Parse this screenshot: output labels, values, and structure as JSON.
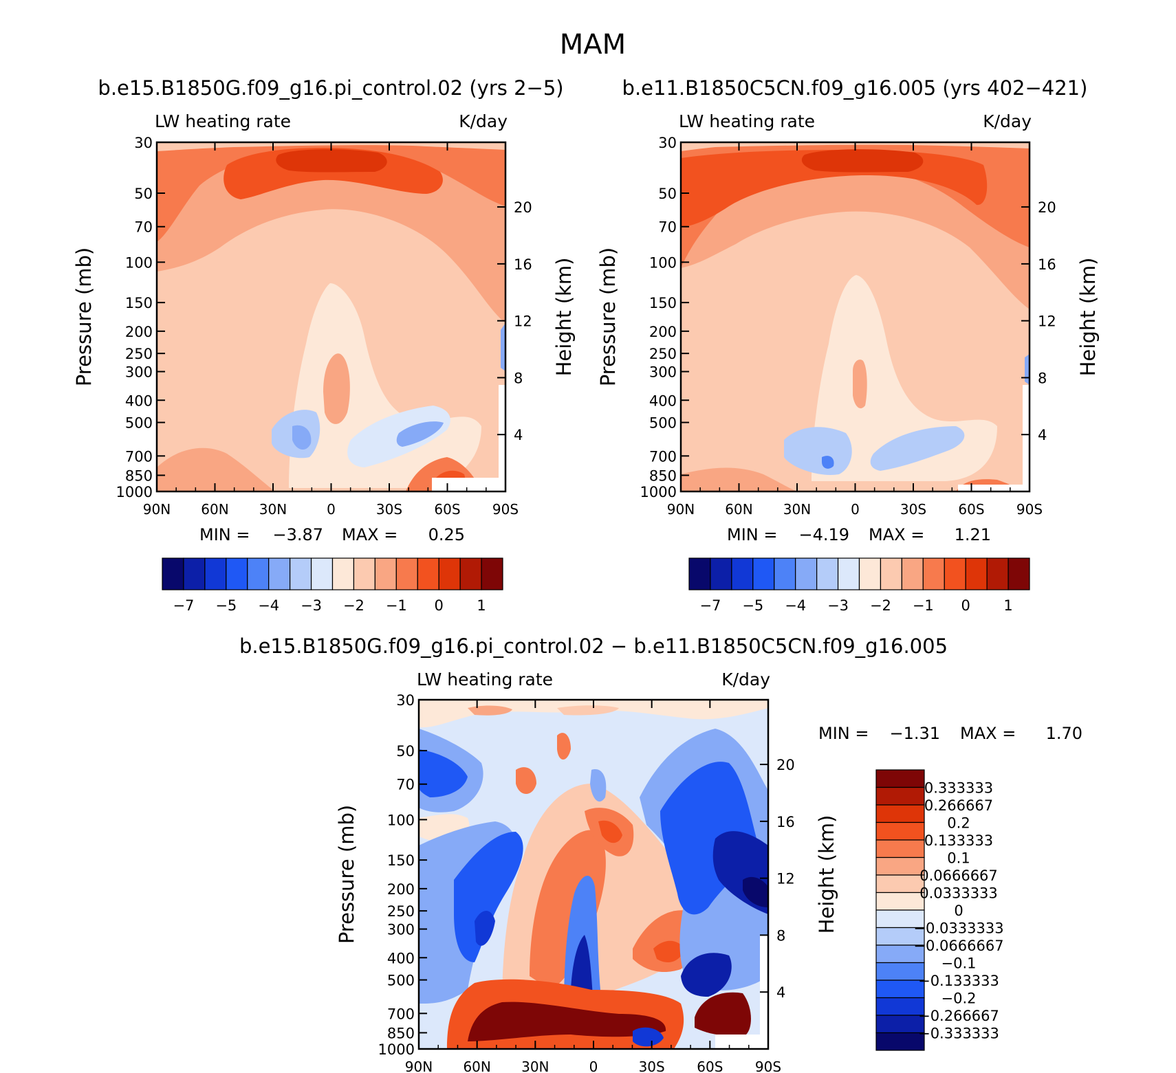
{
  "figure_title": "MAM",
  "chart_data": [
    {
      "type": "contour",
      "title": "b.e15.B1850G.f09_g16.pi_control.02 (yrs 2−5)",
      "left_string": "LW heating rate",
      "right_string": "K/day",
      "ylabel": "Pressure (mb)",
      "ylabel2": "Height (km)",
      "xlabel": "",
      "x_ticks": [
        "90N",
        "60N",
        "30N",
        "0",
        "30S",
        "60S",
        "90S"
      ],
      "y_ticks": [
        30,
        50,
        70,
        100,
        150,
        200,
        250,
        300,
        400,
        500,
        700,
        850,
        1000
      ],
      "y2_ticks": [
        20,
        16,
        12,
        8,
        4
      ],
      "ylim": [
        1000,
        30
      ],
      "min_label": "MIN =",
      "min_value": "−3.87",
      "max_label": "MAX =",
      "max_value": "0.25",
      "colorbar_ticks": [
        "−7",
        "−5",
        "−4",
        "−3",
        "−2",
        "−1",
        "0",
        "1"
      ],
      "colorbar_colors": [
        "#08086b",
        "#0c1fa8",
        "#1138d6",
        "#1f58f5",
        "#4d82f7",
        "#86aaf7",
        "#b4ccf9",
        "#dce8fb",
        "#fde8d8",
        "#fccab0",
        "#f9a683",
        "#f77a4d",
        "#f2521f",
        "#de3508",
        "#b11a05",
        "#7e0606"
      ]
    },
    {
      "type": "contour",
      "title": "b.e11.B1850C5CN.f09_g16.005 (yrs 402−421)",
      "left_string": "LW heating rate",
      "right_string": "K/day",
      "ylabel": "Pressure (mb)",
      "ylabel2": "Height (km)",
      "x_ticks": [
        "90N",
        "60N",
        "30N",
        "0",
        "30S",
        "60S",
        "90S"
      ],
      "y_ticks": [
        30,
        50,
        70,
        100,
        150,
        200,
        250,
        300,
        400,
        500,
        700,
        850,
        1000
      ],
      "y2_ticks": [
        20,
        16,
        12,
        8,
        4
      ],
      "ylim": [
        1000,
        30
      ],
      "min_label": "MIN =",
      "min_value": "−4.19",
      "max_label": "MAX =",
      "max_value": "1.21",
      "colorbar_ticks": [
        "−7",
        "−5",
        "−4",
        "−3",
        "−2",
        "−1",
        "0",
        "1"
      ],
      "colorbar_colors": [
        "#08086b",
        "#0c1fa8",
        "#1138d6",
        "#1f58f5",
        "#4d82f7",
        "#86aaf7",
        "#b4ccf9",
        "#dce8fb",
        "#fde8d8",
        "#fccab0",
        "#f9a683",
        "#f77a4d",
        "#f2521f",
        "#de3508",
        "#b11a05",
        "#7e0606"
      ]
    },
    {
      "type": "contour",
      "title": "b.e15.B1850G.f09_g16.pi_control.02 − b.e11.B1850C5CN.f09_g16.005",
      "left_string": "LW heating rate",
      "right_string": "K/day",
      "ylabel": "Pressure (mb)",
      "ylabel2": "Height (km)",
      "x_ticks": [
        "90N",
        "60N",
        "30N",
        "0",
        "30S",
        "60S",
        "90S"
      ],
      "y_ticks": [
        30,
        50,
        70,
        100,
        150,
        200,
        250,
        300,
        400,
        500,
        700,
        850,
        1000
      ],
      "y2_ticks": [
        20,
        16,
        12,
        8,
        4
      ],
      "ylim": [
        1000,
        30
      ],
      "min_label": "MIN =",
      "min_value": "−1.31",
      "max_label": "MAX =",
      "max_value": "1.70",
      "colorbar_ticks": [
        "0.333333",
        "0.266667",
        "0.2",
        "0.133333",
        "0.1",
        "0.0666667",
        "0.0333333",
        "0",
        "−0.0333333",
        "−0.0666667",
        "−0.1",
        "−0.133333",
        "−0.2",
        "−0.266667",
        "−0.333333"
      ],
      "colorbar_colors": [
        "#7e0606",
        "#b11a05",
        "#de3508",
        "#f2521f",
        "#f77a4d",
        "#f9a683",
        "#fccab0",
        "#fde8d8",
        "#dce8fb",
        "#b4ccf9",
        "#86aaf7",
        "#4d82f7",
        "#1f58f5",
        "#1138d6",
        "#0c1fa8",
        "#08086b"
      ]
    }
  ]
}
